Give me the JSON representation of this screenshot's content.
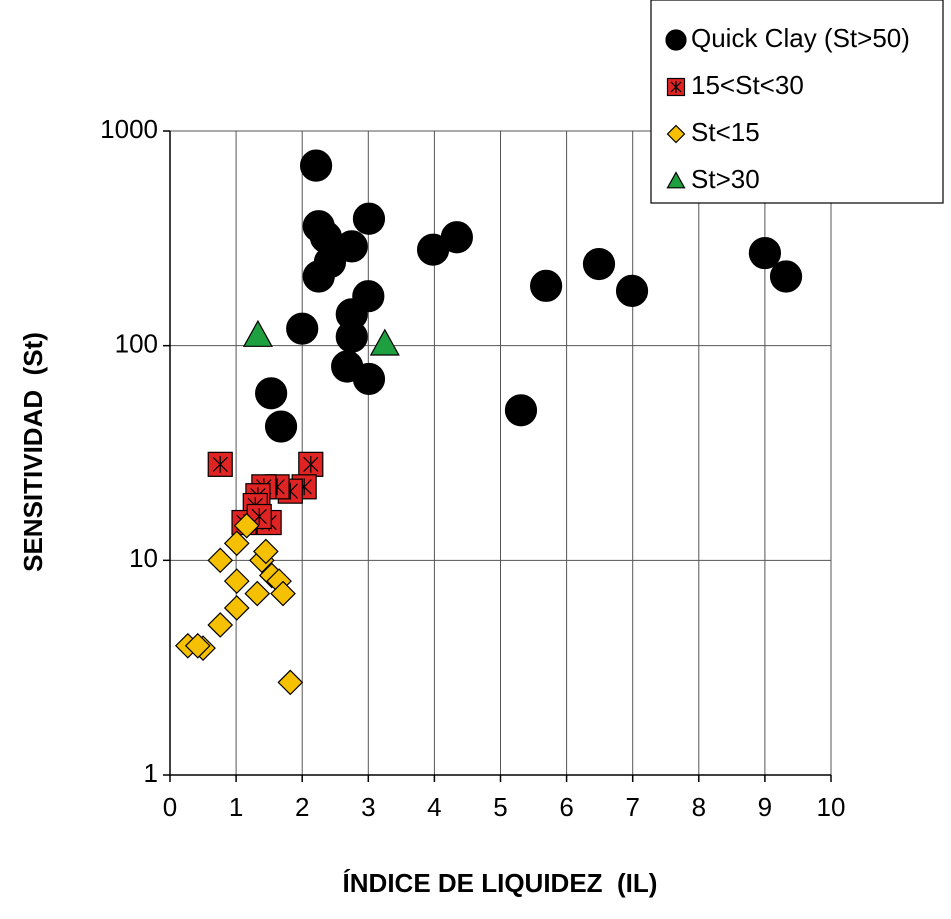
{
  "chart_data": {
    "type": "scatter",
    "x_label": "ÍNDICE DE LIQUIDEZ  (IL)",
    "y_label": "SENSITIVIDAD  (St)",
    "xlim": [
      0,
      10
    ],
    "xticks": [
      0,
      1,
      2,
      3,
      4,
      5,
      6,
      7,
      8,
      9,
      10
    ],
    "ylim": [
      1,
      1000
    ],
    "yticks": [
      1,
      10,
      100,
      1000
    ],
    "yscale": "log",
    "grid": true,
    "legend_position": "upper right",
    "series": [
      {
        "name": "Quick Clay (St>50)",
        "color": "#000000",
        "marker": "circle",
        "x": [
          2.21,
          2.25,
          2.36,
          2.42,
          2.25,
          2.75,
          3.01,
          3.98,
          4.34,
          5.69,
          6.49,
          6.99,
          9.0,
          9.32,
          2.75,
          3.0,
          2.75,
          2.0,
          2.68,
          3.01,
          1.53,
          1.68,
          5.31
        ],
        "values": [
          690,
          360,
          320,
          245,
          210,
          290,
          390,
          280,
          320,
          190,
          240,
          180,
          270,
          210,
          140,
          170,
          110,
          120,
          80,
          70,
          60,
          42,
          50
        ]
      },
      {
        "name": "15<St<30",
        "color": "#e02424",
        "marker": "square",
        "x": [
          0.76,
          2.13,
          2.03,
          1.82,
          1.62,
          1.42,
          1.33,
          1.29,
          1.5,
          1.12,
          1.35
        ],
        "values": [
          28,
          28,
          22,
          21,
          22,
          22,
          20,
          18,
          15,
          15,
          16
        ]
      },
      {
        "name": "St<15",
        "color": "#f5c000",
        "marker": "diamond",
        "x": [
          1.16,
          1.01,
          0.76,
          1.39,
          1.45,
          1.01,
          1.54,
          1.65,
          1.32,
          1.71,
          1.01,
          0.76,
          0.27,
          0.5,
          0.42,
          1.82
        ],
        "values": [
          14.5,
          12,
          10,
          10,
          11,
          8,
          8.5,
          8,
          7,
          7,
          6,
          5,
          4,
          3.9,
          4,
          2.7
        ]
      },
      {
        "name": "St>30",
        "color": "#1fa040",
        "marker": "triangle",
        "x": [
          1.33,
          3.25
        ],
        "values": [
          112,
          102
        ]
      }
    ]
  }
}
